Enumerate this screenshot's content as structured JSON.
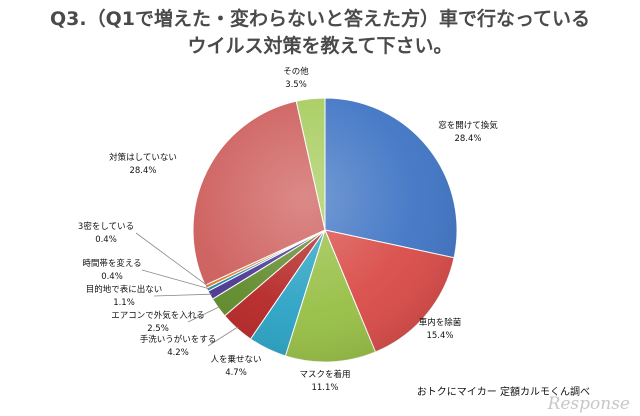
{
  "title_line1": "Q3.（Q1で増えた・変わらないと答えた方）車で行なっている",
  "title_line2": "ウイルス対策を教えて下さい。",
  "credit": "おトクにマイカー 定額カルモくん調べ",
  "watermark": "Response",
  "chart_data": {
    "type": "pie",
    "start": "12 o'clock, clockwise",
    "slices": [
      {
        "label": "窓を開けて換気",
        "value": 28.4,
        "display": "28.4%",
        "color": "#3f74c4"
      },
      {
        "label": "車内を除菌",
        "value": 15.4,
        "display": "15.4%",
        "color": "#d94b48"
      },
      {
        "label": "マスクを着用",
        "value": 11.1,
        "display": "11.1%",
        "color": "#97bf45"
      },
      {
        "label": "人を乗せない",
        "value": 4.7,
        "display": "4.7%",
        "color": "#2aa2c4"
      },
      {
        "label": "手洗いうがいをする",
        "value": 4.2,
        "display": "4.2%",
        "color": "#b52525"
      },
      {
        "label": "エアコンで外気を入れる",
        "value": 2.5,
        "display": "2.5%",
        "color": "#5f8a2a"
      },
      {
        "label": "目的地で表に出ない",
        "value": 1.1,
        "display": "1.1%",
        "color": "#4a3591"
      },
      {
        "label": "時間帯を変える",
        "value": 0.4,
        "display": "0.4%",
        "color": "#1f8aa2"
      },
      {
        "label": "3密をしている",
        "value": 0.4,
        "display": "0.4%",
        "color": "#e0782e"
      },
      {
        "label": "対策はしていない",
        "value": 28.4,
        "display": "28.4%",
        "color": "#cd5d5b"
      },
      {
        "label": "その他",
        "value": 3.5,
        "display": "3.5%",
        "color": "#a6cc5c"
      }
    ]
  }
}
